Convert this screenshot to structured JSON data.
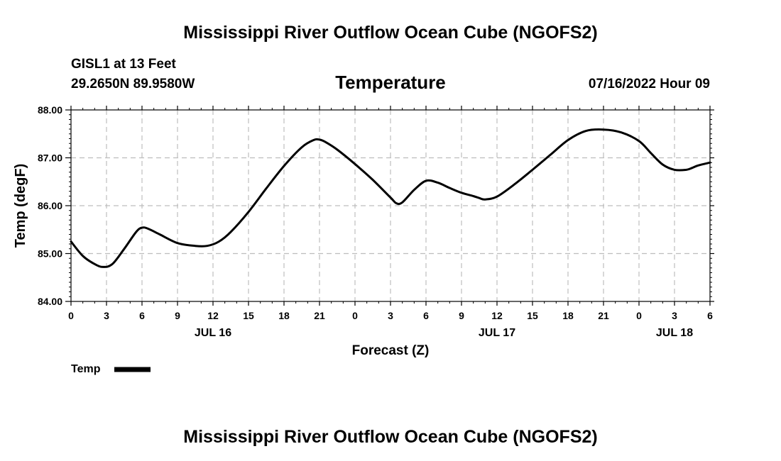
{
  "header": {
    "main_title": "Mississippi River Outflow Ocean Cube (NGOFS2)",
    "station": "GISL1 at 13 Feet",
    "coords": "29.2650N  89.9580W",
    "timestamp": "07/16/2022 Hour 09",
    "footer_title": "Mississippi River Outflow Ocean Cube (NGOFS2)"
  },
  "chart_data": {
    "type": "line",
    "title": "Temperature",
    "xlabel": "Forecast (Z)",
    "ylabel": "Temp (degF)",
    "xlim": [
      0,
      54
    ],
    "ylim": [
      84.0,
      88.0
    ],
    "grid": true,
    "x_ticks": [
      0,
      3,
      6,
      9,
      12,
      15,
      18,
      21,
      24,
      27,
      30,
      33,
      36,
      39,
      42,
      45,
      48,
      51,
      54
    ],
    "x_tick_labels": [
      "0",
      "3",
      "6",
      "9",
      "12",
      "15",
      "18",
      "21",
      "0",
      "3",
      "6",
      "9",
      "12",
      "15",
      "18",
      "21",
      "0",
      "3",
      "6"
    ],
    "y_ticks": [
      84.0,
      85.0,
      86.0,
      87.0,
      88.0
    ],
    "y_tick_labels": [
      "84.00",
      "85.00",
      "86.00",
      "87.00",
      "88.00"
    ],
    "day_labels": [
      {
        "x": 12,
        "label": "JUL 16"
      },
      {
        "x": 36,
        "label": "JUL 17"
      },
      {
        "x": 51,
        "label": "JUL 18"
      }
    ],
    "legend": {
      "position": "bottom-left",
      "entries": [
        "Temp"
      ]
    },
    "series": [
      {
        "name": "Temp",
        "color": "#000000",
        "x": [
          0,
          1,
          2,
          2.7,
          3.5,
          4.5,
          5.5,
          6,
          6.5,
          7.5,
          9,
          10.5,
          11.5,
          12.5,
          13.5,
          15,
          16.5,
          18,
          19.5,
          20.5,
          21,
          21.5,
          22.5,
          24,
          25.5,
          27,
          27.5,
          28,
          29,
          30,
          31,
          32,
          33,
          34,
          34.5,
          35,
          36,
          37.5,
          39,
          40.5,
          42,
          43.5,
          45,
          46.5,
          48,
          49,
          50,
          51,
          52,
          52.5,
          53,
          54
        ],
        "values": [
          85.25,
          84.95,
          84.78,
          84.72,
          84.78,
          85.1,
          85.45,
          85.54,
          85.52,
          85.4,
          85.22,
          85.16,
          85.16,
          85.25,
          85.45,
          85.87,
          86.36,
          86.83,
          87.22,
          87.37,
          87.38,
          87.33,
          87.17,
          86.87,
          86.54,
          86.17,
          86.05,
          86.07,
          86.33,
          86.52,
          86.48,
          86.37,
          86.27,
          86.2,
          86.16,
          86.13,
          86.19,
          86.45,
          86.75,
          87.06,
          87.37,
          87.56,
          87.59,
          87.53,
          87.35,
          87.1,
          86.86,
          86.75,
          86.75,
          86.79,
          86.84,
          86.9
        ]
      }
    ]
  }
}
